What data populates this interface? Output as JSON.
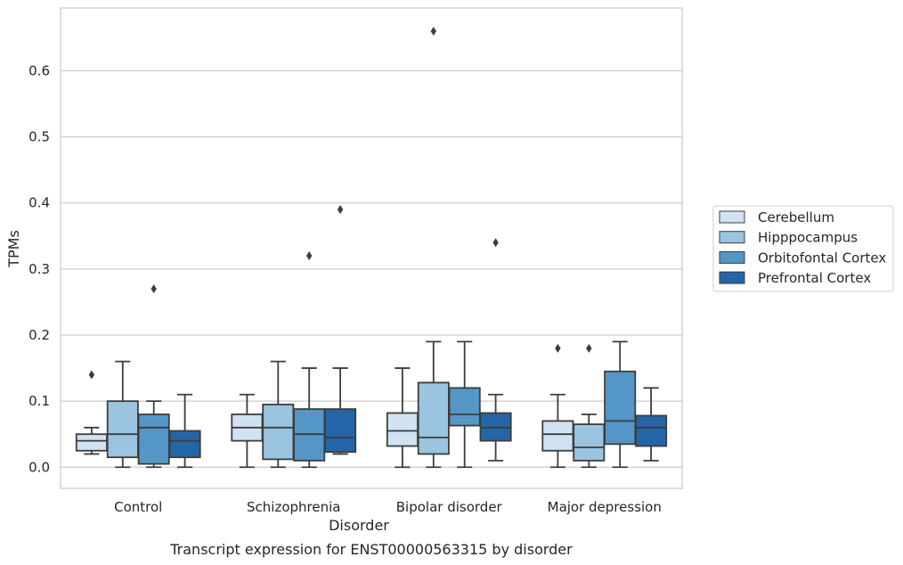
{
  "chart_data": {
    "type": "box",
    "xlabel": "Disorder",
    "ylabel": "TPMs",
    "caption": "Transcript expression for ENST00000563315 by disorder",
    "ylim": [
      -0.032,
      0.695
    ],
    "yticks": [
      "0.0",
      "0.1",
      "0.2",
      "0.3",
      "0.4",
      "0.5",
      "0.6"
    ],
    "grid": true,
    "legend_position": "right",
    "categories": [
      "Control",
      "Schizophrenia",
      "Bipolar disorder",
      "Major depression"
    ],
    "series": [
      {
        "name": "Cerebellum",
        "color": "#d1e2f2",
        "boxes": [
          {
            "whisker_low": 0.02,
            "q1": 0.025,
            "median": 0.04,
            "q3": 0.05,
            "whisker_high": 0.06,
            "outliers": [
              0.14
            ]
          },
          {
            "whisker_low": 0.0,
            "q1": 0.04,
            "median": 0.06,
            "q3": 0.08,
            "whisker_high": 0.11,
            "outliers": []
          },
          {
            "whisker_low": 0.0,
            "q1": 0.032,
            "median": 0.055,
            "q3": 0.082,
            "whisker_high": 0.15,
            "outliers": []
          },
          {
            "whisker_low": 0.0,
            "q1": 0.025,
            "median": 0.05,
            "q3": 0.07,
            "whisker_high": 0.11,
            "outliers": [
              0.18
            ]
          }
        ]
      },
      {
        "name": "Hipppocampus",
        "color": "#9ac4df",
        "boxes": [
          {
            "whisker_low": 0.0,
            "q1": 0.015,
            "median": 0.05,
            "q3": 0.1,
            "whisker_high": 0.16,
            "outliers": []
          },
          {
            "whisker_low": 0.0,
            "q1": 0.012,
            "median": 0.06,
            "q3": 0.095,
            "whisker_high": 0.16,
            "outliers": []
          },
          {
            "whisker_low": 0.0,
            "q1": 0.02,
            "median": 0.045,
            "q3": 0.128,
            "whisker_high": 0.19,
            "outliers": [
              0.66
            ]
          },
          {
            "whisker_low": 0.0,
            "q1": 0.01,
            "median": 0.03,
            "q3": 0.065,
            "whisker_high": 0.08,
            "outliers": [
              0.18
            ]
          }
        ]
      },
      {
        "name": "Orbitofontal Cortex",
        "color": "#5497c6",
        "boxes": [
          {
            "whisker_low": 0.0,
            "q1": 0.005,
            "median": 0.06,
            "q3": 0.08,
            "whisker_high": 0.1,
            "outliers": [
              0.27
            ]
          },
          {
            "whisker_low": 0.0,
            "q1": 0.01,
            "median": 0.05,
            "q3": 0.088,
            "whisker_high": 0.15,
            "outliers": [
              0.32
            ]
          },
          {
            "whisker_low": 0.0,
            "q1": 0.063,
            "median": 0.08,
            "q3": 0.12,
            "whisker_high": 0.19,
            "outliers": []
          },
          {
            "whisker_low": 0.0,
            "q1": 0.035,
            "median": 0.07,
            "q3": 0.145,
            "whisker_high": 0.19,
            "outliers": []
          }
        ]
      },
      {
        "name": "Prefrontal Cortex",
        "color": "#2465a8",
        "boxes": [
          {
            "whisker_low": 0.0,
            "q1": 0.015,
            "median": 0.04,
            "q3": 0.055,
            "whisker_high": 0.11,
            "outliers": []
          },
          {
            "whisker_low": 0.02,
            "q1": 0.023,
            "median": 0.045,
            "q3": 0.088,
            "whisker_high": 0.15,
            "outliers": [
              0.39
            ]
          },
          {
            "whisker_low": 0.01,
            "q1": 0.04,
            "median": 0.06,
            "q3": 0.082,
            "whisker_high": 0.11,
            "outliers": [
              0.34
            ]
          },
          {
            "whisker_low": 0.01,
            "q1": 0.032,
            "median": 0.06,
            "q3": 0.078,
            "whisker_high": 0.12,
            "outliers": []
          }
        ]
      }
    ]
  }
}
